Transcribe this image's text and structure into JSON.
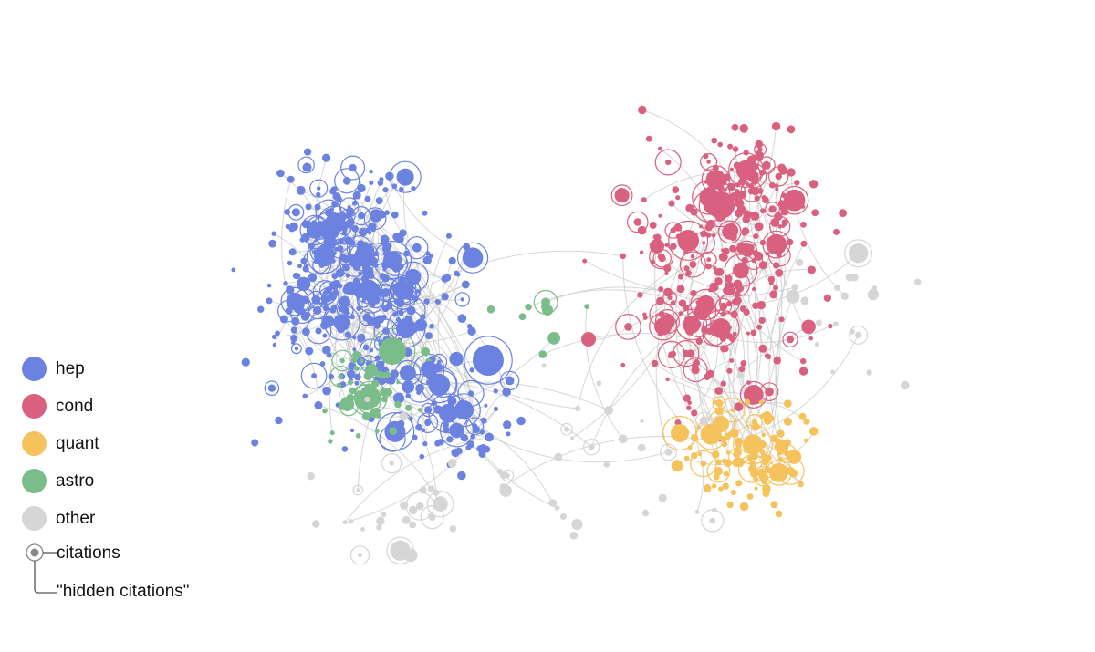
{
  "legend": {
    "items": [
      {
        "key": "hep",
        "label": "hep",
        "color": "#6b82e0"
      },
      {
        "key": "cond",
        "label": "cond",
        "color": "#d9607f"
      },
      {
        "key": "quant",
        "label": "quant",
        "color": "#f5c25c"
      },
      {
        "key": "astro",
        "label": "astro",
        "color": "#7abd8a"
      },
      {
        "key": "other",
        "label": "other",
        "color": "#d6d6d6"
      }
    ],
    "citations_label": "citations",
    "hidden_citations_label": "\"hidden citations\""
  },
  "colors": {
    "edge": "#c8c8c8",
    "background": "#ffffff"
  }
}
